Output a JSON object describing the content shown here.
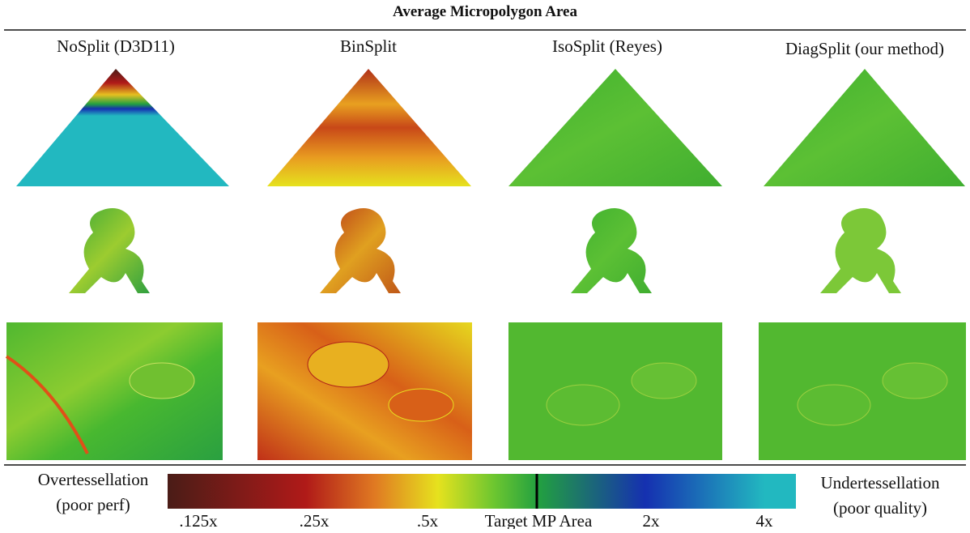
{
  "header": {
    "title": "Average Micropolygon Area"
  },
  "columns": [
    "NoSplit (D3D11)",
    "BinSplit",
    "IsoSplit (Reyes)",
    "DiagSplit (our method)"
  ],
  "legend": {
    "left": [
      "Overtessellation",
      "(poor perf)"
    ],
    "right": [
      "Undertessellation",
      "(poor quality)"
    ],
    "ticks": [
      ".125x",
      ".25x",
      ".5x",
      "Target MP Area",
      "2x",
      "4x"
    ]
  }
}
